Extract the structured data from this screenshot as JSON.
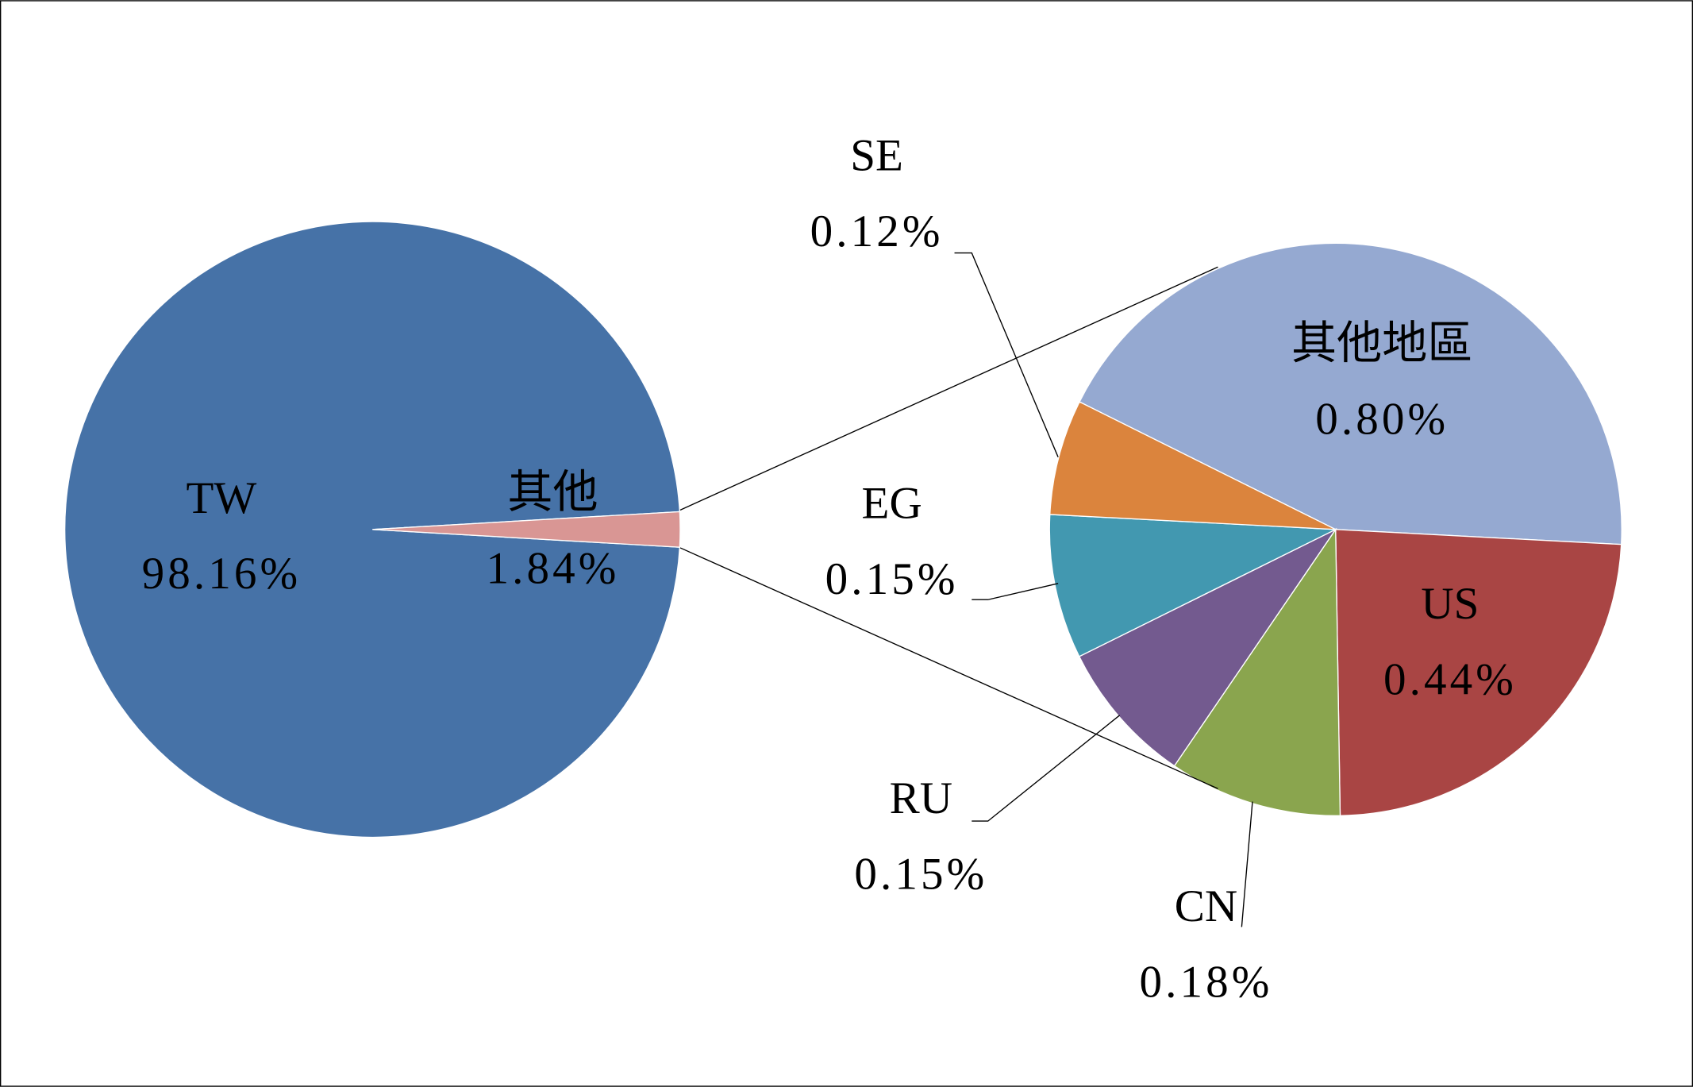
{
  "chart_data": [
    {
      "type": "pie",
      "categories": [
        "TW",
        "其他"
      ],
      "values": [
        98.16,
        1.84
      ],
      "value_labels": [
        "98.16%",
        "1.84%"
      ],
      "colors": [
        "#4672a7",
        "#d99694"
      ]
    },
    {
      "type": "pie",
      "categories": [
        "其他地區",
        "US",
        "CN",
        "RU",
        "EG",
        "SE"
      ],
      "values": [
        0.8,
        0.44,
        0.18,
        0.15,
        0.15,
        0.12
      ],
      "value_labels": [
        "0.80%",
        "0.44%",
        "0.18%",
        "0.15%",
        "0.15%",
        "0.12%"
      ],
      "colors": [
        "#95a9d1",
        "#a94544",
        "#8aa54e",
        "#735a8f",
        "#4298b0",
        "#db843d"
      ]
    }
  ]
}
